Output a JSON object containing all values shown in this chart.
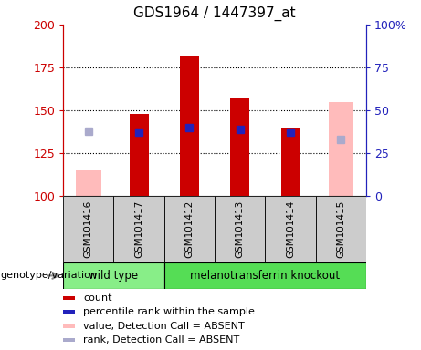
{
  "title": "GDS1964 / 1447397_at",
  "samples": [
    "GSM101416",
    "GSM101417",
    "GSM101412",
    "GSM101413",
    "GSM101414",
    "GSM101415"
  ],
  "count_values": [
    null,
    148,
    182,
    157,
    140,
    null
  ],
  "percentile_rank": [
    null,
    137,
    140,
    139,
    137,
    null
  ],
  "absent_value": [
    115,
    null,
    null,
    null,
    null,
    155
  ],
  "absent_rank": [
    138,
    null,
    null,
    null,
    null,
    133
  ],
  "ylim": [
    100,
    200
  ],
  "yticks": [
    100,
    125,
    150,
    175,
    200
  ],
  "red_color": "#cc0000",
  "blue_color": "#2222bb",
  "pink_color": "#ffbbbb",
  "lightblue_color": "#aaaacc",
  "bg_color": "#cccccc",
  "wildtype_color": "#88ee88",
  "knockout_color": "#55dd55",
  "legend_items": [
    {
      "color": "#cc0000",
      "label": "count"
    },
    {
      "color": "#2222bb",
      "label": "percentile rank within the sample"
    },
    {
      "color": "#ffbbbb",
      "label": "value, Detection Call = ABSENT"
    },
    {
      "color": "#aaaacc",
      "label": "rank, Detection Call = ABSENT"
    }
  ]
}
